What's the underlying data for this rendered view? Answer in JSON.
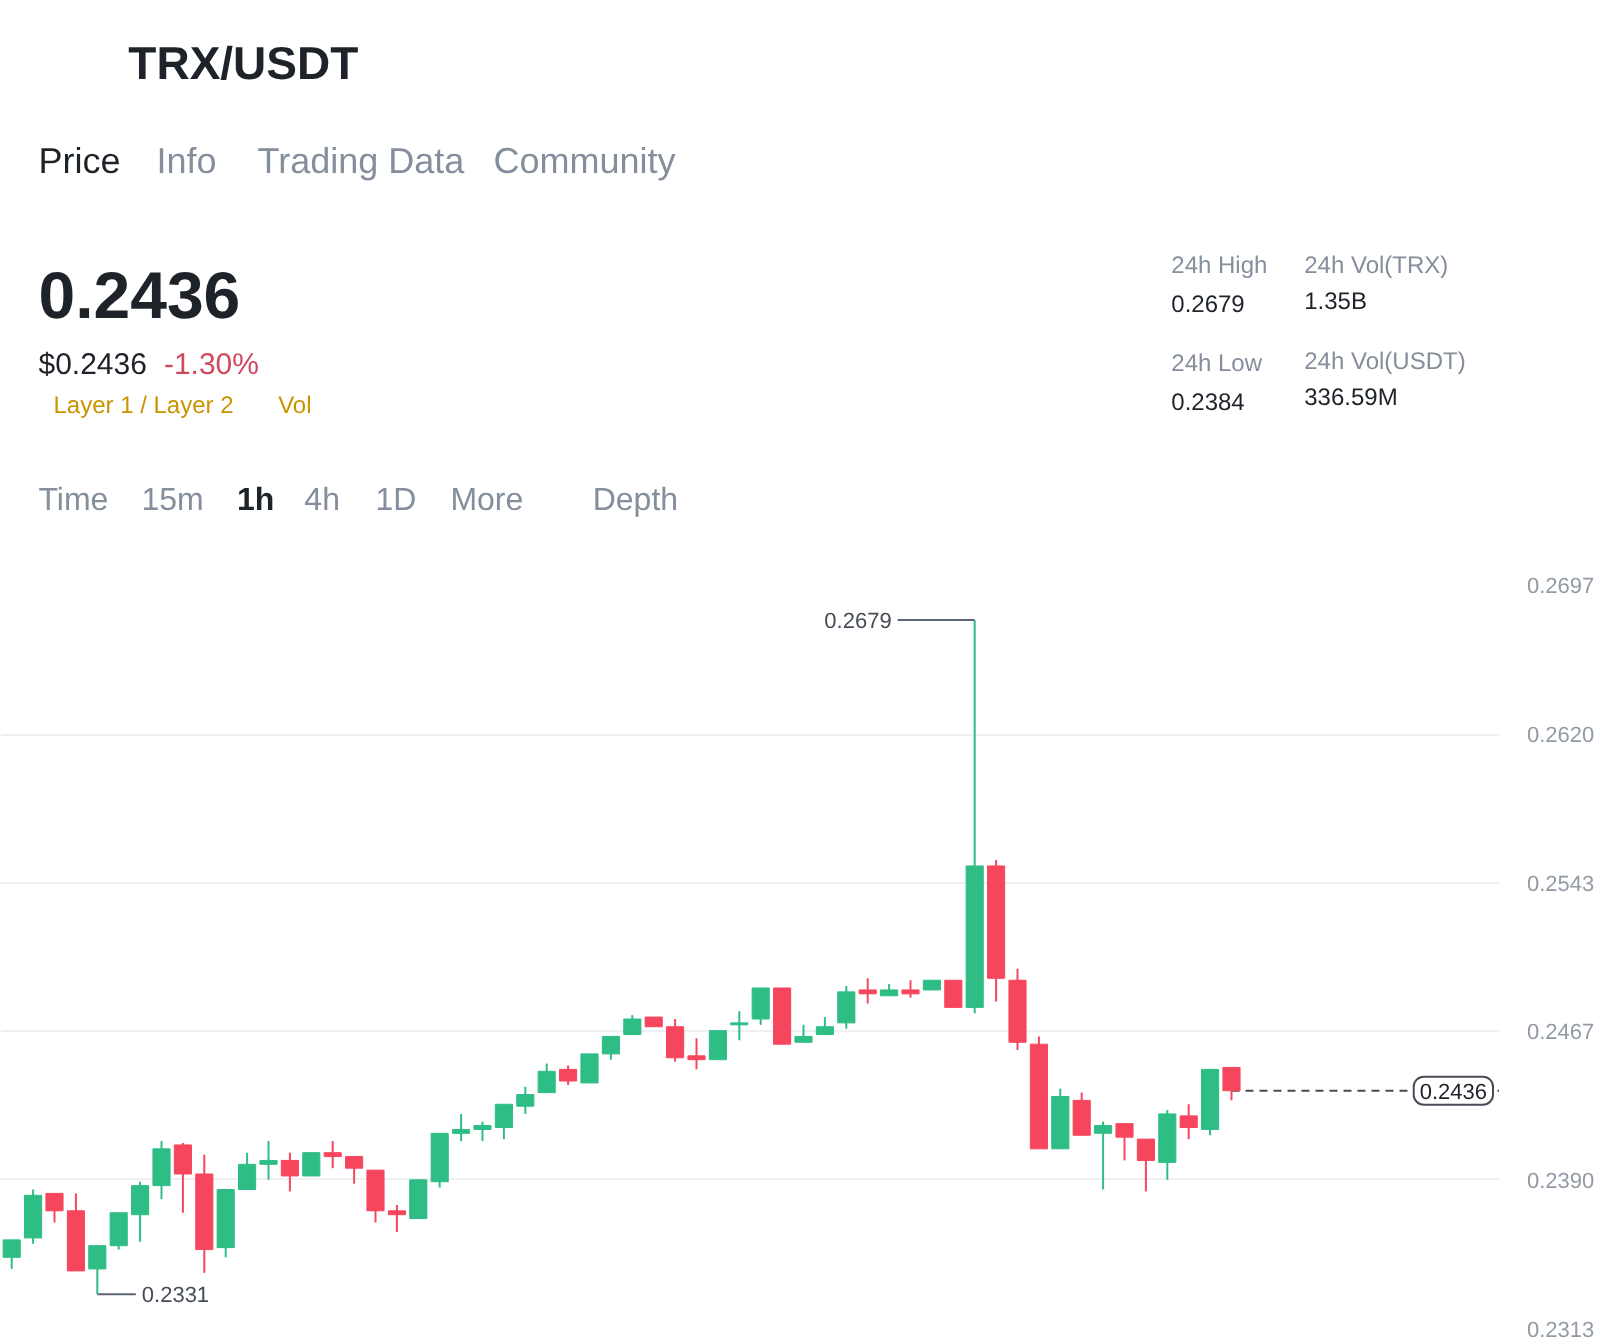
{
  "chart_data": [
    {
      "type": "other",
      "title": "TRX/USDT",
      "annotations": [
        "Price",
        "Info",
        "Trading Data",
        "Community",
        "0.2436",
        "$0.2436",
        "-1.30%",
        "Layer 1 / Layer 2",
        "Vol",
        "24h High",
        "0.2679",
        "24h Low",
        "0.2384",
        "24h Vol(TRX)",
        "1.35B",
        "24h Vol(USDT)",
        "336.59M",
        "Time",
        "15m",
        "1h",
        "4h",
        "1D",
        "More",
        "Depth"
      ]
    },
    {
      "type": "candlestick",
      "categories": [
        null,
        null,
        null,
        null,
        null,
        null,
        null,
        null,
        null,
        null,
        null,
        null,
        null,
        null,
        null,
        null,
        null,
        null,
        null,
        null,
        null,
        null,
        null,
        null,
        null,
        null,
        null,
        null,
        null,
        null,
        null,
        null,
        null,
        null,
        null,
        null,
        null,
        null,
        null,
        null,
        null,
        null,
        null,
        null,
        null,
        null,
        null,
        null,
        null,
        null,
        null,
        null,
        null,
        null,
        null,
        null,
        null,
        null,
        null,
        null,
        null,
        null,
        null,
        null,
        null,
        null,
        null,
        null,
        null,
        null
      ],
      "ohlc": [
        [
          0.235,
          0.2359,
          0.2344,
          0.2359
        ],
        [
          0.236,
          0.2385,
          0.2357,
          0.2382
        ],
        [
          0.2383,
          0.2383,
          0.2368,
          0.2374
        ],
        [
          0.2374,
          0.2383,
          0.2343,
          0.2343
        ],
        [
          0.2344,
          0.2356,
          0.2331,
          0.2356
        ],
        [
          0.2356,
          0.2373,
          0.2354,
          0.2373
        ],
        [
          0.2372,
          0.2389,
          0.2358,
          0.2387
        ],
        [
          0.2387,
          0.241,
          0.238,
          0.2406
        ],
        [
          0.2408,
          0.2409,
          0.2373,
          0.2393
        ],
        [
          0.2393,
          0.2403,
          0.2342,
          0.2354
        ],
        [
          0.2355,
          0.2385,
          0.235,
          0.2385
        ],
        [
          0.2385,
          0.2404,
          0.2385,
          0.2398
        ],
        [
          0.2398,
          0.241,
          0.239,
          0.24
        ],
        [
          0.24,
          0.2404,
          0.2384,
          0.2392
        ],
        [
          0.2392,
          0.2404,
          0.2392,
          0.2404
        ],
        [
          0.2404,
          0.241,
          0.2396,
          0.2402
        ],
        [
          0.2402,
          0.2402,
          0.2388,
          0.2396
        ],
        [
          0.2395,
          0.2395,
          0.2368,
          0.2374
        ],
        [
          0.2374,
          0.2377,
          0.2363,
          0.2372
        ],
        [
          0.237,
          0.239,
          0.237,
          0.239
        ],
        [
          0.2389,
          0.2414,
          0.2386,
          0.2414
        ],
        [
          0.2414,
          0.2424,
          0.241,
          0.2416
        ],
        [
          0.2416,
          0.242,
          0.241,
          0.2418
        ],
        [
          0.2417,
          0.2429,
          0.2411,
          0.2429
        ],
        [
          0.2428,
          0.2438,
          0.2424,
          0.2434
        ],
        [
          0.2435,
          0.245,
          0.2435,
          0.2446
        ],
        [
          0.2447,
          0.2449,
          0.2439,
          0.2441
        ],
        [
          0.244,
          0.2455,
          0.244,
          0.2455
        ],
        [
          0.2455,
          0.2464,
          0.2452,
          0.2464
        ],
        [
          0.2465,
          0.2475,
          0.2465,
          0.2473
        ],
        [
          0.2474,
          0.2474,
          0.2469,
          0.2469
        ],
        [
          0.2469,
          0.2473,
          0.2451,
          0.2453
        ],
        [
          0.2454,
          0.2463,
          0.2447,
          0.2452
        ],
        [
          0.2452,
          0.2467,
          0.2452,
          0.2467
        ],
        [
          0.247,
          0.2477,
          0.2462,
          0.2471
        ],
        [
          0.2473,
          0.2489,
          0.247,
          0.2489
        ],
        [
          0.2489,
          0.2489,
          0.246,
          0.246
        ],
        [
          0.2461,
          0.247,
          0.2461,
          0.2464
        ],
        [
          0.2465,
          0.2474,
          0.2465,
          0.2469
        ],
        [
          0.2471,
          0.249,
          0.2468,
          0.2487
        ],
        [
          0.2488,
          0.2494,
          0.2481,
          0.2486
        ],
        [
          0.2485,
          0.2491,
          0.2485,
          0.2488
        ],
        [
          0.2488,
          0.2493,
          0.2484,
          0.2486
        ],
        [
          0.2488,
          0.2493,
          0.2488,
          0.2493
        ],
        [
          0.2493,
          0.2493,
          0.2479,
          0.2479
        ],
        [
          0.2479,
          0.2679,
          0.2476,
          0.2552
        ],
        [
          0.2552,
          0.2555,
          0.2482,
          0.2494
        ],
        [
          0.2493,
          0.2499,
          0.2457,
          0.2461
        ],
        [
          0.246,
          0.2464,
          0.2406,
          0.2406
        ],
        [
          0.2406,
          0.2437,
          0.2406,
          0.2433
        ],
        [
          0.2431,
          0.2435,
          0.2413,
          0.2413
        ],
        [
          0.2414,
          0.242,
          0.2385,
          0.2418
        ],
        [
          0.2419,
          0.2419,
          0.24,
          0.2412
        ],
        [
          0.2411,
          0.2411,
          0.2384,
          0.24
        ],
        [
          0.2399,
          0.2426,
          0.239,
          0.2424
        ],
        [
          0.2423,
          0.2429,
          0.2411,
          0.2417
        ],
        [
          0.2416,
          0.2447,
          0.2413,
          0.2447
        ],
        [
          0.2448,
          0.2448,
          0.2431,
          0.2436
        ],
        null,
        null,
        null,
        null,
        null,
        null,
        null,
        null,
        null,
        null,
        null,
        null
      ],
      "colors": [
        "#2ebd85",
        "#2ebd85",
        "#f6465d",
        "#f6465d",
        "#2ebd85",
        "#2ebd85",
        "#2ebd85",
        "#2ebd85",
        "#f6465d",
        "#f6465d",
        "#2ebd85",
        "#2ebd85",
        "#2ebd85",
        "#f6465d",
        "#2ebd85",
        "#f6465d",
        "#f6465d",
        "#f6465d",
        "#f6465d",
        "#2ebd85",
        "#2ebd85",
        "#2ebd85",
        "#2ebd85",
        "#2ebd85",
        "#2ebd85",
        "#2ebd85",
        "#f6465d",
        "#2ebd85",
        "#2ebd85",
        "#2ebd85",
        "#f6465d",
        "#f6465d",
        "#f6465d",
        "#2ebd85",
        "#2ebd85",
        "#2ebd85",
        "#f6465d",
        "#2ebd85",
        "#2ebd85",
        "#2ebd85",
        "#f6465d",
        "#2ebd85",
        "#f6465d",
        "#2ebd85",
        "#f6465d",
        "#2ebd85",
        "#f6465d",
        "#f6465d",
        "#f6465d",
        "#2ebd85",
        "#f6465d",
        "#2ebd85",
        "#f6465d",
        "#f6465d",
        "#2ebd85",
        "#f6465d",
        "#2ebd85",
        "#f6465d",
        null,
        null,
        null,
        null,
        null,
        null,
        null,
        null,
        null,
        null,
        null,
        null
      ],
      "ylim": [
        0.2313,
        0.2697
      ],
      "yticks": [
        0.2313,
        {
          "value": 0.239,
          "label": "0.2390"
        },
        0.2467,
        0.2543,
        {
          "value": 0.262,
          "label": "0.2620"
        },
        0.2697
      ],
      "grid": "y",
      "tick_labels": "y",
      "ref_lines": [
        {
          "axis": "y",
          "value": 0.2436,
          "label": "0.2436",
          "line_style": "dashed",
          "color": "#474d57"
        }
      ],
      "annotations": [
        "0.2679",
        "0.2331"
      ]
    }
  ]
}
